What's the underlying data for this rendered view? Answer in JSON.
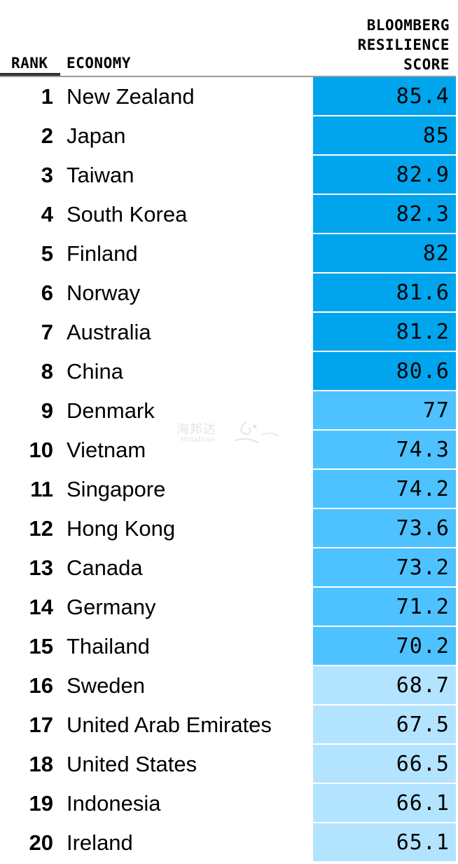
{
  "header": {
    "rank_label": "RANK",
    "economy_label": "ECONOMY",
    "score_label_lines": [
      "BLOOMBERG",
      "RESILIENCE",
      "SCORE"
    ]
  },
  "watermark": {
    "cn": "海邦达",
    "en": "Hinabian"
  },
  "colors": {
    "tier_dark": "#00a5ee",
    "tier_mid": "#4dc2ff",
    "tier_light": "#b3e4ff",
    "divider": "#999999",
    "rank_underline": "#333333"
  },
  "chart_data": {
    "type": "table",
    "columns": [
      "RANK",
      "ECONOMY",
      "BLOOMBERG RESILIENCE SCORE"
    ],
    "rows": [
      {
        "rank": "1",
        "economy": "New Zealand",
        "score": "85.4",
        "tier": "dark"
      },
      {
        "rank": "2",
        "economy": "Japan",
        "score": "85",
        "tier": "dark"
      },
      {
        "rank": "3",
        "economy": "Taiwan",
        "score": "82.9",
        "tier": "dark"
      },
      {
        "rank": "4",
        "economy": "South Korea",
        "score": "82.3",
        "tier": "dark"
      },
      {
        "rank": "5",
        "economy": "Finland",
        "score": "82",
        "tier": "dark"
      },
      {
        "rank": "6",
        "economy": "Norway",
        "score": "81.6",
        "tier": "dark"
      },
      {
        "rank": "7",
        "economy": "Australia",
        "score": "81.2",
        "tier": "dark"
      },
      {
        "rank": "8",
        "economy": "China",
        "score": "80.6",
        "tier": "dark"
      },
      {
        "rank": "9",
        "economy": "Denmark",
        "score": "77",
        "tier": "mid"
      },
      {
        "rank": "10",
        "economy": "Vietnam",
        "score": "74.3",
        "tier": "mid"
      },
      {
        "rank": "11",
        "economy": "Singapore",
        "score": "74.2",
        "tier": "mid"
      },
      {
        "rank": "12",
        "economy": "Hong Kong",
        "score": "73.6",
        "tier": "mid"
      },
      {
        "rank": "13",
        "economy": "Canada",
        "score": "73.2",
        "tier": "mid"
      },
      {
        "rank": "14",
        "economy": "Germany",
        "score": "71.2",
        "tier": "mid"
      },
      {
        "rank": "15",
        "economy": "Thailand",
        "score": "70.2",
        "tier": "mid"
      },
      {
        "rank": "16",
        "economy": "Sweden",
        "score": "68.7",
        "tier": "light"
      },
      {
        "rank": "17",
        "economy": "United Arab Emirates",
        "score": "67.5",
        "tier": "light"
      },
      {
        "rank": "18",
        "economy": "United States",
        "score": "66.5",
        "tier": "light"
      },
      {
        "rank": "19",
        "economy": "Indonesia",
        "score": "66.1",
        "tier": "light"
      },
      {
        "rank": "20",
        "economy": "Ireland",
        "score": "65.1",
        "tier": "light"
      }
    ]
  }
}
